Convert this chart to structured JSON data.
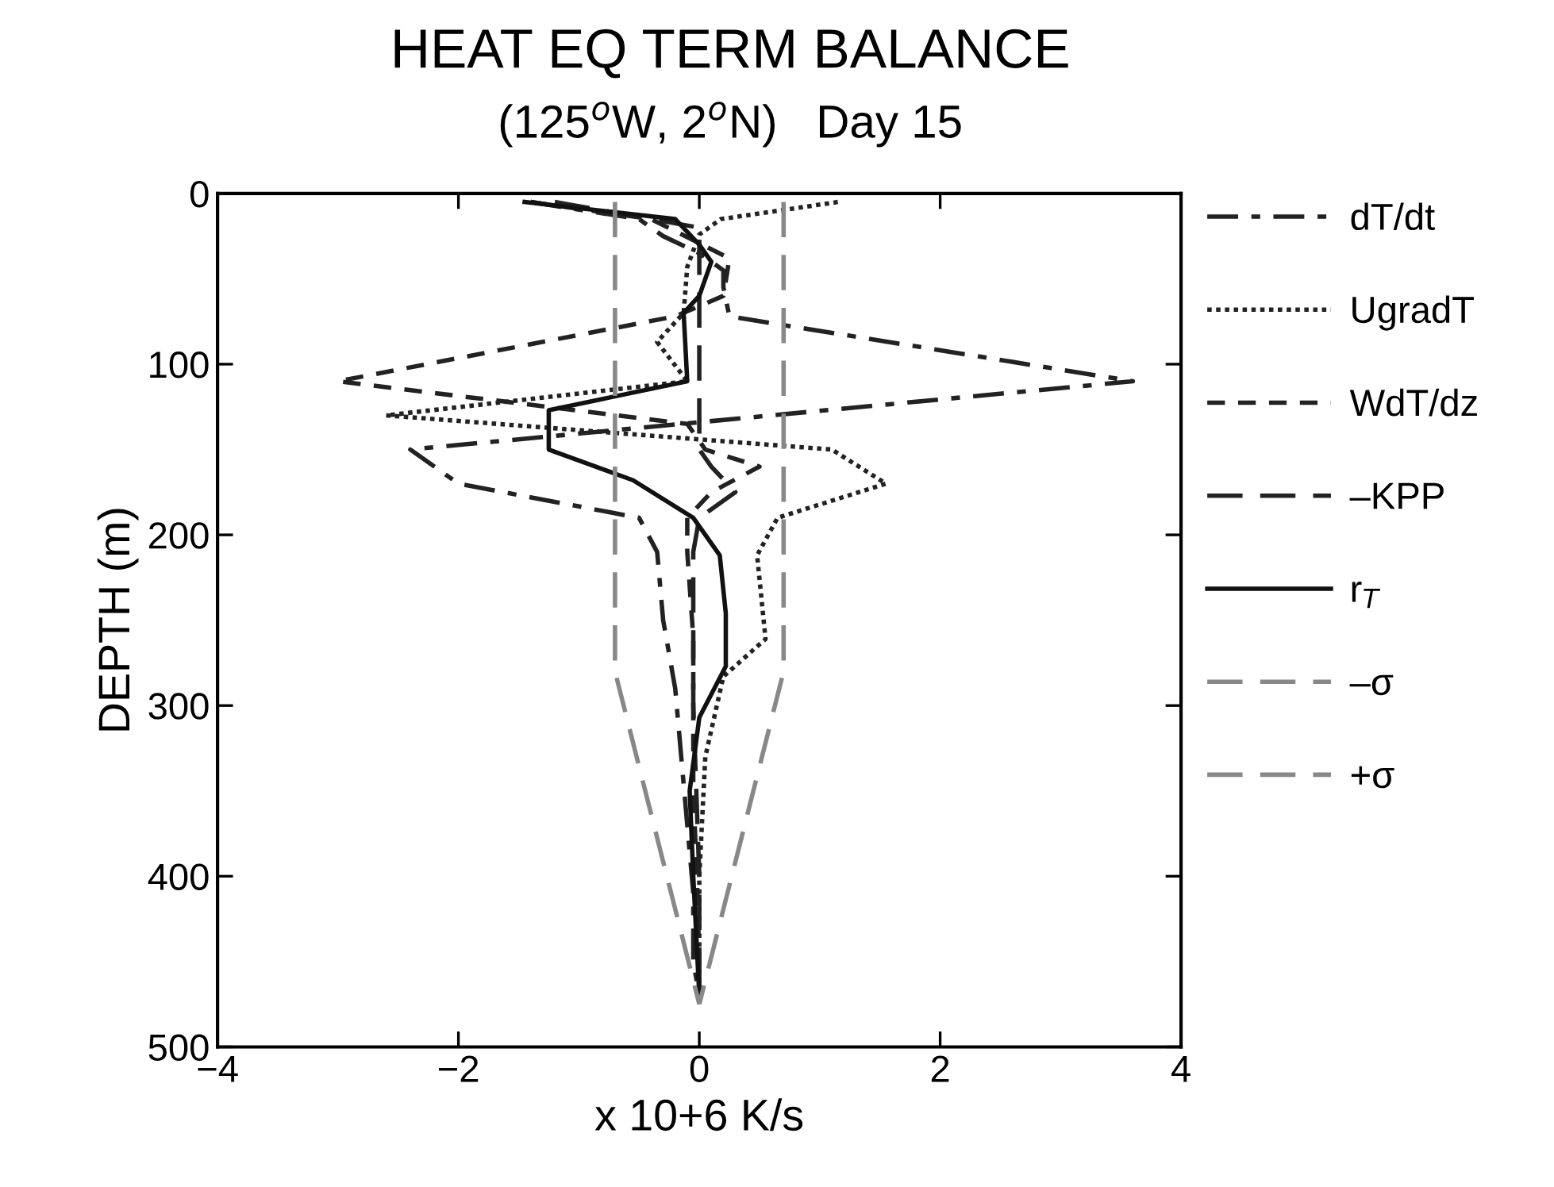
{
  "chart_data": {
    "type": "line",
    "title": "HEAT EQ TERM BALANCE",
    "subtitle": "(125$^{o}$W, 2$^{o}$N)   Day 15",
    "xlabel": "x 10+6 K/s",
    "ylabel": "DEPTH (m)",
    "xlim": [
      -4,
      4
    ],
    "xticks": [
      {
        "value": -4,
        "label": "−4"
      },
      {
        "value": -2,
        "label": "−2"
      },
      0,
      2,
      4
    ],
    "ylim": [
      500,
      0
    ],
    "yticks": [
      0,
      100,
      200,
      300,
      400,
      500
    ],
    "grid": false,
    "legend": "right",
    "series": [
      {
        "name": "dT/dt",
        "color": "#222222",
        "line_style": "dashdot",
        "x": [
          -1.4,
          -0.5,
          -0.3,
          0.0,
          0.2,
          0.2,
          0.25,
          3.6,
          -2.4,
          -2.0,
          -0.5,
          -0.35,
          -0.3,
          -0.2,
          -0.15,
          -0.1,
          -0.05,
          -0.05,
          0.0
        ],
        "values": [
          5,
          15,
          25,
          35,
          45,
          55,
          72,
          110,
          150,
          170,
          190,
          210,
          250,
          290,
          330,
          370,
          410,
          450,
          470
        ]
      },
      {
        "name": "UgradT",
        "color": "#222222",
        "line_style": "dotted",
        "x": [
          1.15,
          0.18,
          0.0,
          -0.1,
          -0.13,
          -0.35,
          -0.1,
          -2.6,
          1.1,
          1.55,
          0.65,
          0.48,
          0.55,
          0.2,
          0.05,
          0.0,
          0.0
        ],
        "values": [
          5,
          15,
          24,
          43,
          70,
          87,
          110,
          130,
          150,
          170,
          190,
          212,
          261,
          283,
          330,
          400,
          470
        ]
      },
      {
        "name": "WdT/dz",
        "color": "#222222",
        "line_style": "dashed",
        "x": [
          -1.4,
          -0.4,
          0.25,
          0.2,
          -0.2,
          -3.0,
          -0.1,
          0.05,
          0.5,
          0.1,
          -0.1,
          -0.1,
          -0.05,
          -0.05,
          -0.05,
          -0.02,
          0.0,
          0.0
        ],
        "values": [
          5,
          15,
          38,
          60,
          72,
          110,
          135,
          150,
          160,
          175,
          190,
          210,
          260,
          300,
          350,
          400,
          450,
          470
        ]
      },
      {
        "name": "–KPP",
        "color": "#222222",
        "line_style": "longdash",
        "x": [
          -1.2,
          0.0,
          0.0,
          0.0,
          0.0,
          0.0,
          0.0,
          0.1,
          0.3,
          0.0,
          -0.05,
          -0.05,
          0.0,
          0.0
        ],
        "values": [
          5,
          20,
          40,
          70,
          100,
          130,
          150,
          160,
          175,
          190,
          210,
          300,
          400,
          470
        ]
      },
      {
        "name": "r$_{T}$",
        "color": "#111111",
        "line_style": "solid",
        "x": [
          -1.45,
          -0.2,
          0.0,
          0.1,
          0.0,
          -0.13,
          -0.1,
          -1.25,
          -1.25,
          -0.55,
          -0.05,
          0.17,
          0.22,
          0.22,
          0.0,
          -0.08,
          -0.05,
          0.0
        ],
        "values": [
          5,
          15,
          30,
          40,
          60,
          70,
          110,
          127,
          150,
          168,
          190,
          212,
          246,
          277,
          307,
          350,
          400,
          470
        ]
      },
      {
        "name": "–σ",
        "color": "#888888",
        "line_style": "longdash",
        "x": [
          -0.7,
          -0.7,
          0.0
        ],
        "values": [
          5,
          280,
          475
        ]
      },
      {
        "name": "+σ",
        "color": "#888888",
        "line_style": "longdash",
        "x": [
          0.7,
          0.7,
          0.0
        ],
        "values": [
          5,
          280,
          475
        ]
      }
    ]
  }
}
